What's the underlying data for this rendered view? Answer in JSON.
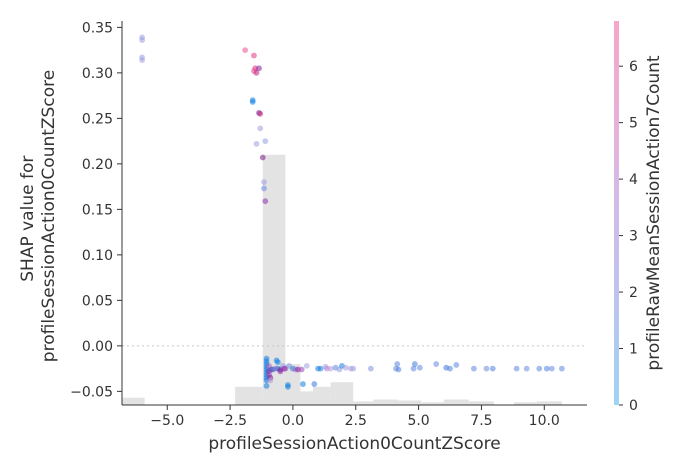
{
  "chart_data": {
    "type": "scatter",
    "xlabel": "profileSessionAction0CountZScore",
    "ylabel": "SHAP value for\nprofileSessionAction0CountZScore",
    "colorbar_label": "profileRawMeanSessionAction7Count",
    "xlim": [
      -6.8,
      11.7
    ],
    "ylim": [
      -0.065,
      0.357
    ],
    "x_ticks": [
      -5.0,
      -2.5,
      0.0,
      2.5,
      5.0,
      7.5,
      10.0
    ],
    "x_tick_labels": [
      "−5.0",
      "−2.5",
      "0.0",
      "2.5",
      "5.0",
      "7.5",
      "10.0"
    ],
    "y_ticks": [
      -0.05,
      0.0,
      0.05,
      0.1,
      0.15,
      0.2,
      0.25,
      0.3,
      0.35
    ],
    "y_tick_labels": [
      "−0.05",
      "0.00",
      "0.05",
      "0.10",
      "0.15",
      "0.20",
      "0.25",
      "0.30",
      "0.35"
    ],
    "colorbar_ticks": [
      0,
      1,
      2,
      3,
      4,
      5,
      6
    ],
    "colorbar_range": [
      0,
      6.8
    ],
    "colorbar_colors": [
      "#9dd4f5",
      "#b9c4ef",
      "#d0bce8",
      "#e8b0d8",
      "#f6a6c8"
    ],
    "zero_line": true,
    "histogram": {
      "bin_edges": [
        -6.8,
        -5.9,
        -5.0,
        -4.1,
        -3.2,
        -2.3,
        -1.2,
        -0.3,
        0.3,
        0.8,
        1.5,
        2.4,
        3.2,
        4.2,
        5.1,
        6.0,
        7.0,
        8.0,
        8.8,
        9.7,
        10.7,
        11.7
      ],
      "heights": [
        0.008,
        0,
        0,
        0,
        0,
        0.02,
        0.275,
        0.045,
        0.015,
        0.02,
        0.025,
        0.004,
        0.006,
        0.005,
        0.003,
        0.006,
        0.004,
        0,
        0.003,
        0.004,
        0
      ]
    },
    "points": [
      {
        "x": -6.0,
        "y": 0.339,
        "c": 2.0
      },
      {
        "x": -6.0,
        "y": 0.336,
        "c": 2.2
      },
      {
        "x": -6.0,
        "y": 0.317,
        "c": 2.0
      },
      {
        "x": -6.0,
        "y": 0.314,
        "c": 2.4
      },
      {
        "x": -1.9,
        "y": 0.325,
        "c": 6.3
      },
      {
        "x": -1.55,
        "y": 0.319,
        "c": 6.0
      },
      {
        "x": -1.5,
        "y": 0.305,
        "c": 5.8
      },
      {
        "x": -1.55,
        "y": 0.302,
        "c": 6.2
      },
      {
        "x": -1.45,
        "y": 0.3,
        "c": 5.5
      },
      {
        "x": -1.35,
        "y": 0.305,
        "c": 4.5
      },
      {
        "x": -1.6,
        "y": 0.27,
        "c": 0.5
      },
      {
        "x": -1.6,
        "y": 0.268,
        "c": 0.3
      },
      {
        "x": -1.35,
        "y": 0.256,
        "c": 4.8
      },
      {
        "x": -1.3,
        "y": 0.255,
        "c": 5.5
      },
      {
        "x": -1.3,
        "y": 0.239,
        "c": 2.4
      },
      {
        "x": -1.1,
        "y": 0.225,
        "c": 2.0
      },
      {
        "x": -1.45,
        "y": 0.222,
        "c": 2.3
      },
      {
        "x": -1.2,
        "y": 0.207,
        "c": 4.8
      },
      {
        "x": -1.15,
        "y": 0.18,
        "c": 2.2
      },
      {
        "x": -1.15,
        "y": 0.173,
        "c": 1.6
      },
      {
        "x": -1.1,
        "y": 0.159,
        "c": 4.0
      },
      {
        "x": -1.05,
        "y": -0.014,
        "c": 0.3
      },
      {
        "x": -1.05,
        "y": -0.017,
        "c": 0.5
      },
      {
        "x": -1.05,
        "y": -0.02,
        "c": 0.2
      },
      {
        "x": -1.05,
        "y": -0.023,
        "c": 0.6
      },
      {
        "x": -1.05,
        "y": -0.026,
        "c": 0.4
      },
      {
        "x": -1.05,
        "y": -0.029,
        "c": 0.3
      },
      {
        "x": -1.05,
        "y": -0.032,
        "c": 0.5
      },
      {
        "x": -1.05,
        "y": -0.035,
        "c": 0.2
      },
      {
        "x": -1.05,
        "y": -0.038,
        "c": 0.6
      },
      {
        "x": -1.05,
        "y": -0.044,
        "c": 0.4
      },
      {
        "x": -0.95,
        "y": -0.022,
        "c": 3.5
      },
      {
        "x": -0.95,
        "y": -0.028,
        "c": 4.2
      },
      {
        "x": -0.95,
        "y": -0.032,
        "c": 3.8
      },
      {
        "x": -0.9,
        "y": -0.035,
        "c": 4.6
      },
      {
        "x": -0.9,
        "y": -0.038,
        "c": 2.8
      },
      {
        "x": -0.85,
        "y": -0.026,
        "c": 4.5
      },
      {
        "x": -0.8,
        "y": -0.026,
        "c": 0.4
      },
      {
        "x": -0.7,
        "y": -0.025,
        "c": 3.6
      },
      {
        "x": -0.65,
        "y": -0.016,
        "c": 0.5
      },
      {
        "x": -0.6,
        "y": -0.025,
        "c": 0.5
      },
      {
        "x": -0.6,
        "y": -0.018,
        "c": 0.3
      },
      {
        "x": -0.5,
        "y": -0.028,
        "c": 4.2
      },
      {
        "x": -0.5,
        "y": -0.026,
        "c": 4.5
      },
      {
        "x": -0.4,
        "y": -0.022,
        "c": 2.0
      },
      {
        "x": -0.35,
        "y": -0.025,
        "c": 4.4
      },
      {
        "x": -0.3,
        "y": -0.025,
        "c": 3.8
      },
      {
        "x": -0.2,
        "y": -0.043,
        "c": 0.3
      },
      {
        "x": -0.2,
        "y": -0.045,
        "c": 0.4
      },
      {
        "x": -0.15,
        "y": -0.022,
        "c": 1.8
      },
      {
        "x": 0.0,
        "y": -0.025,
        "c": 0.5
      },
      {
        "x": 0.1,
        "y": -0.026,
        "c": 3.5
      },
      {
        "x": 0.2,
        "y": -0.026,
        "c": 4.4
      },
      {
        "x": 0.35,
        "y": -0.026,
        "c": 3.8
      },
      {
        "x": 0.4,
        "y": -0.042,
        "c": 0.5
      },
      {
        "x": 0.55,
        "y": -0.022,
        "c": 2.2
      },
      {
        "x": 0.85,
        "y": -0.042,
        "c": 1.2
      },
      {
        "x": 1.0,
        "y": -0.025,
        "c": 0.5
      },
      {
        "x": 1.1,
        "y": -0.025,
        "c": 0.6
      },
      {
        "x": 1.3,
        "y": -0.023,
        "c": 2.4
      },
      {
        "x": 1.35,
        "y": -0.025,
        "c": 3.2
      },
      {
        "x": 1.5,
        "y": -0.025,
        "c": 2.8
      },
      {
        "x": 1.7,
        "y": -0.024,
        "c": 1.5
      },
      {
        "x": 1.85,
        "y": -0.026,
        "c": 2.0
      },
      {
        "x": 1.95,
        "y": -0.022,
        "c": 0.5
      },
      {
        "x": 2.1,
        "y": -0.024,
        "c": 2.3
      },
      {
        "x": 2.3,
        "y": -0.025,
        "c": 2.6
      },
      {
        "x": 2.4,
        "y": -0.025,
        "c": 2.1
      },
      {
        "x": 3.1,
        "y": -0.025,
        "c": 1.8
      },
      {
        "x": 4.1,
        "y": -0.025,
        "c": 1.6
      },
      {
        "x": 4.15,
        "y": -0.02,
        "c": 1.5
      },
      {
        "x": 4.2,
        "y": -0.026,
        "c": 1.4
      },
      {
        "x": 4.8,
        "y": -0.025,
        "c": 1.5
      },
      {
        "x": 4.85,
        "y": -0.02,
        "c": 1.3
      },
      {
        "x": 5.05,
        "y": -0.024,
        "c": 1.5
      },
      {
        "x": 5.7,
        "y": -0.02,
        "c": 1.6
      },
      {
        "x": 6.1,
        "y": -0.024,
        "c": 1.2
      },
      {
        "x": 6.25,
        "y": -0.025,
        "c": 1.4
      },
      {
        "x": 6.5,
        "y": -0.021,
        "c": 1.5
      },
      {
        "x": 7.2,
        "y": -0.025,
        "c": 1.5
      },
      {
        "x": 7.7,
        "y": -0.025,
        "c": 1.6
      },
      {
        "x": 7.95,
        "y": -0.025,
        "c": 1.4
      },
      {
        "x": 8.9,
        "y": -0.025,
        "c": 1.5
      },
      {
        "x": 9.3,
        "y": -0.025,
        "c": 1.6
      },
      {
        "x": 9.8,
        "y": -0.025,
        "c": 1.5
      },
      {
        "x": 10.1,
        "y": -0.025,
        "c": 1.4
      },
      {
        "x": 10.3,
        "y": -0.025,
        "c": 1.6
      },
      {
        "x": 10.7,
        "y": -0.025,
        "c": 1.5
      }
    ]
  }
}
